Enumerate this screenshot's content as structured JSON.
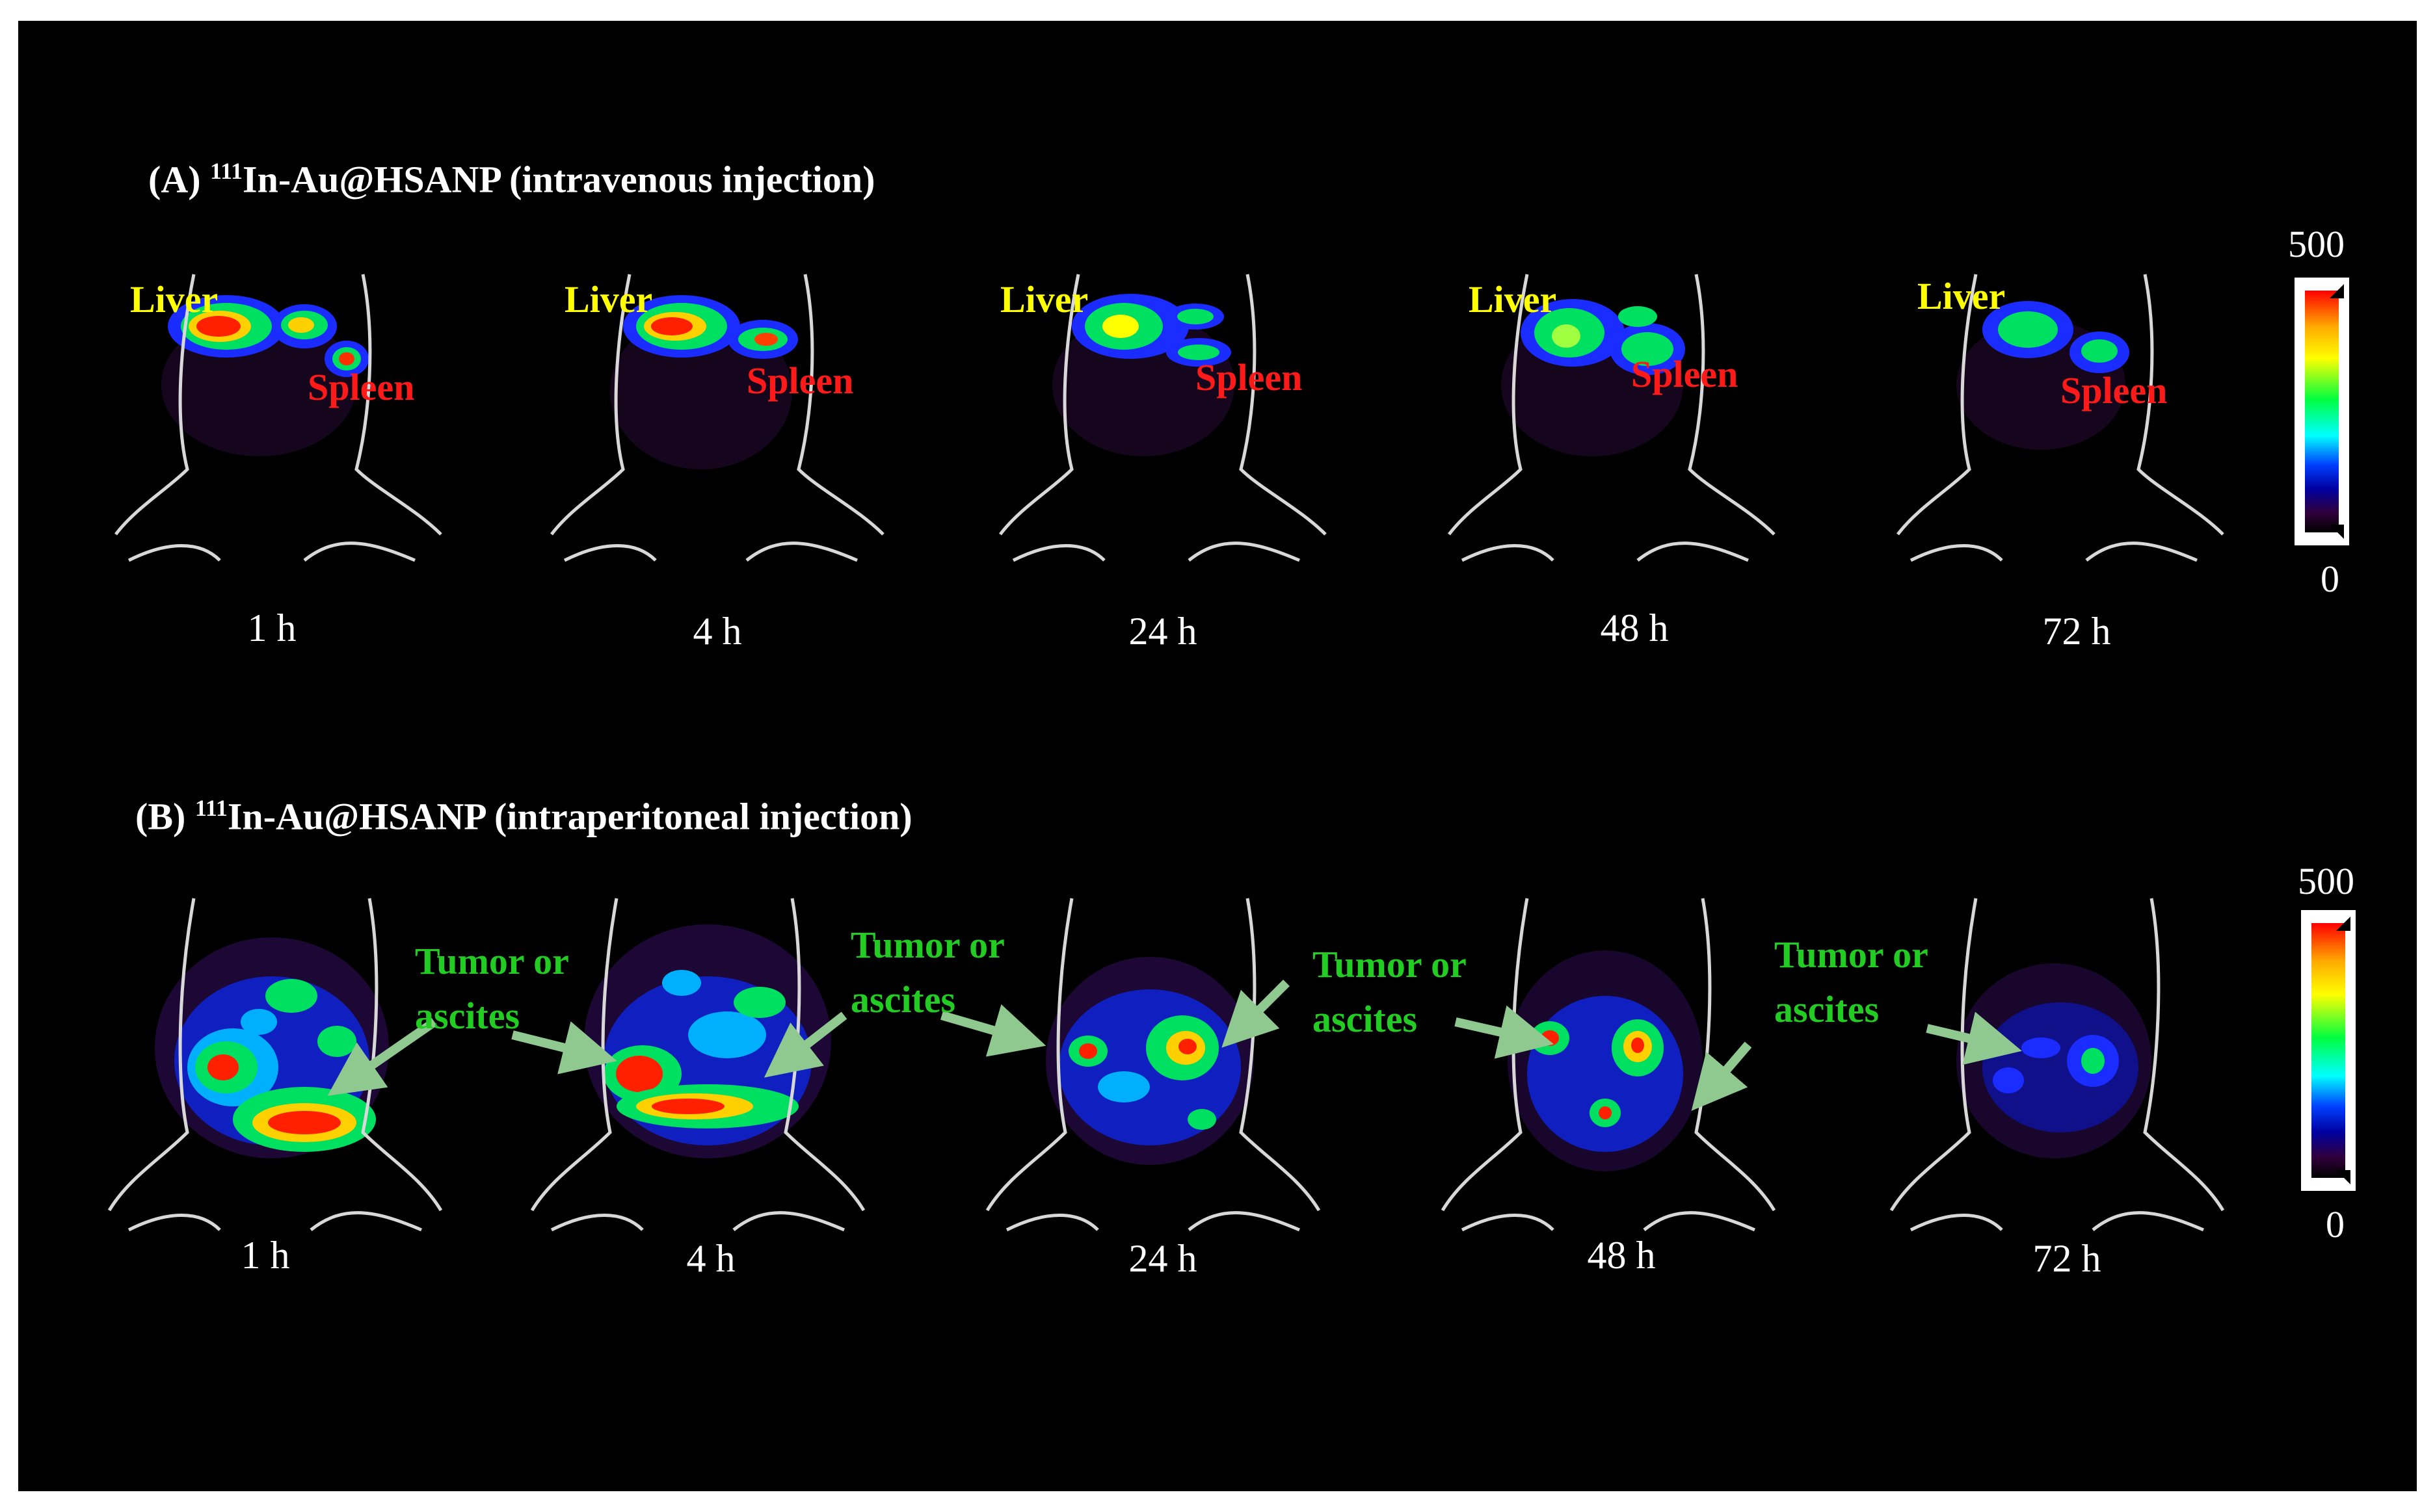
{
  "panel_a": {
    "title_prefix": "(A) ",
    "isotope_mass": "111",
    "title_rest": "In-Au@HSANP (intravenous injection)",
    "times": [
      "1 h",
      "4 h",
      "24 h",
      "48 h",
      "72 h"
    ],
    "organ_labels": {
      "liver": "Liver",
      "spleen": "Spleen"
    },
    "scale": {
      "max": "500",
      "min": "0"
    }
  },
  "panel_b": {
    "title_prefix": "(B) ",
    "isotope_mass": "111",
    "title_rest": "In-Au@HSANP (intraperitoneal injection)",
    "times": [
      "1 h",
      "4 h",
      "24 h",
      "48 h",
      "72 h"
    ],
    "annotation_line1": "Tumor or",
    "annotation_line2": "ascites",
    "scale": {
      "max": "500",
      "min": "0"
    }
  },
  "colors": {
    "liver_label": "#ffff00",
    "spleen_label": "#ff1a1a",
    "tumor_label": "#22cc22",
    "arrow": "#8fc98f",
    "outline": "#d8d8d8",
    "background": "#000000"
  }
}
